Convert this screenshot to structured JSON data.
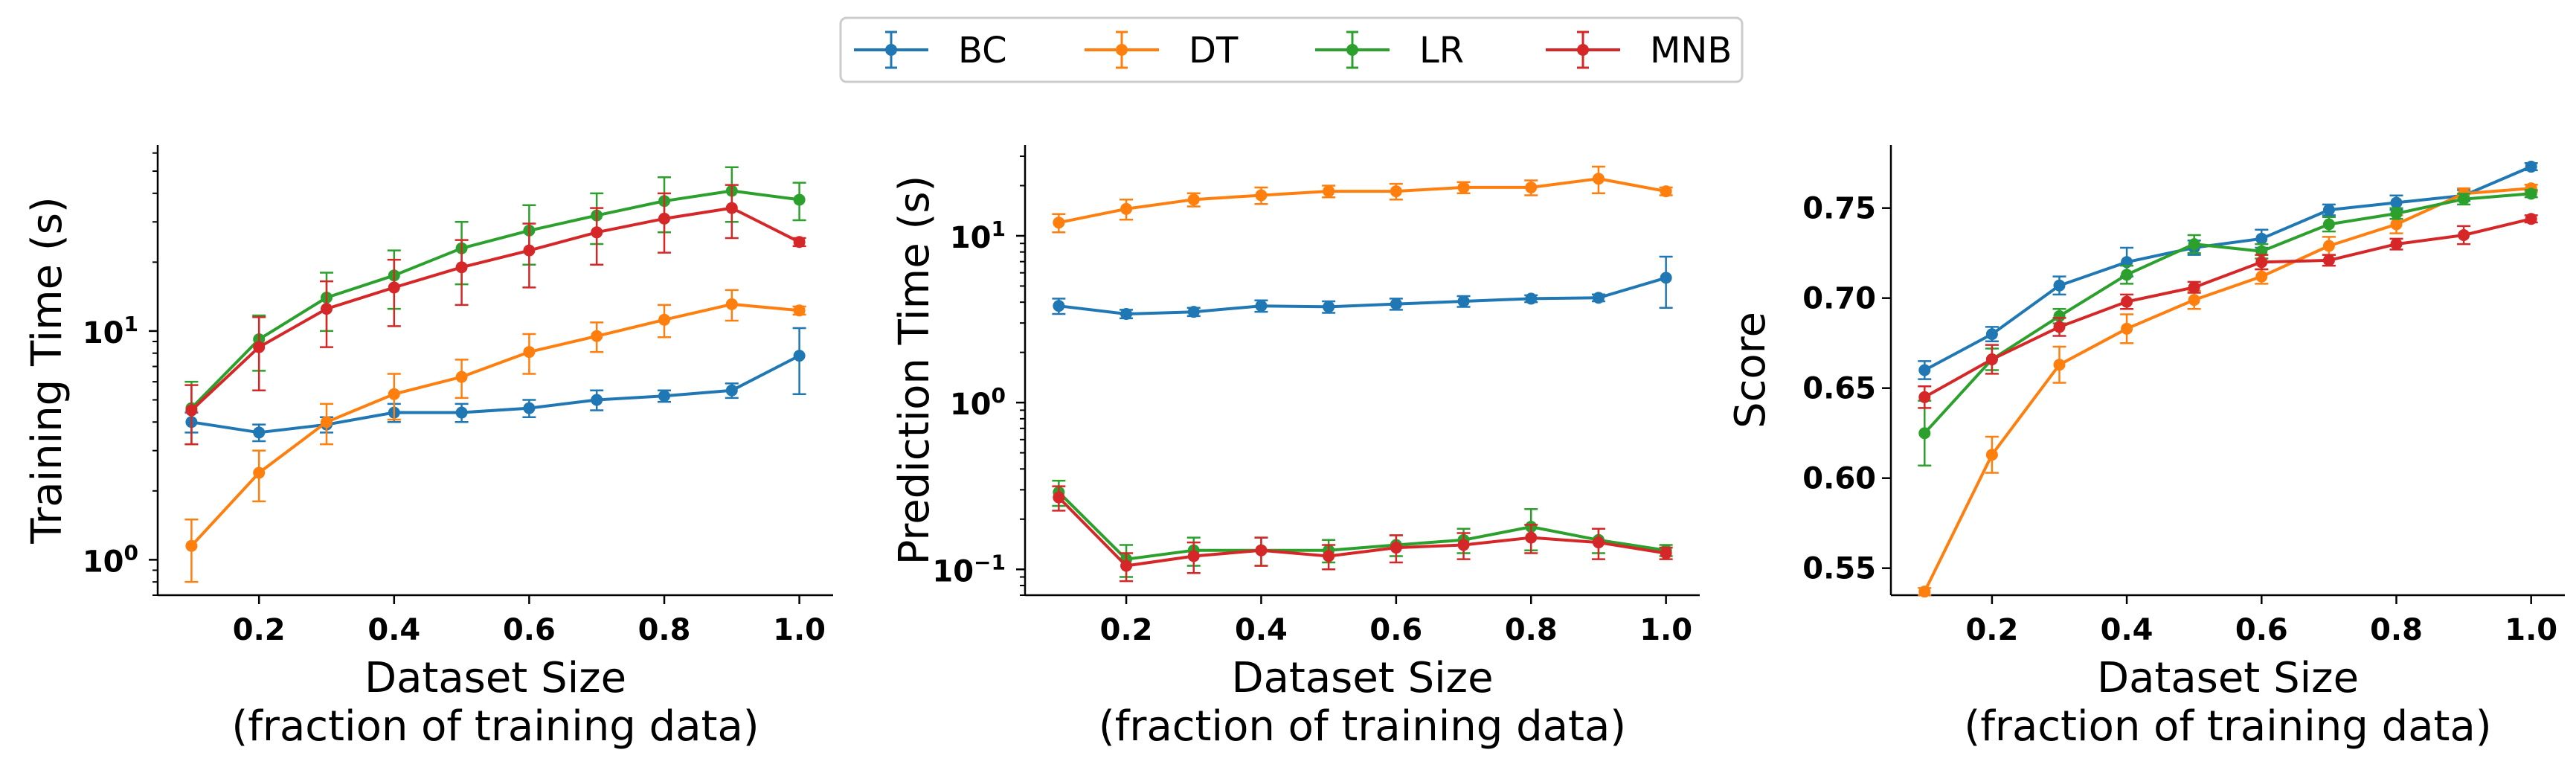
{
  "legend": {
    "items": [
      {
        "label": "BC",
        "color": "#1f77b4"
      },
      {
        "label": "DT",
        "color": "#ff7f0e"
      },
      {
        "label": "LR",
        "color": "#2ca02c"
      },
      {
        "label": "MNB",
        "color": "#d62728"
      }
    ],
    "placement": "top-center"
  },
  "chart_data": [
    {
      "type": "line",
      "ylabel": "Training Time (s)",
      "xlabel": [
        "Dataset Size",
        "(fraction of training data)"
      ],
      "yscale": "log",
      "xlim": [
        0.05,
        1.05
      ],
      "ylim": [
        0.7,
        65
      ],
      "xticks": [
        0.2,
        0.4,
        0.6,
        0.8,
        1.0
      ],
      "xtick_labels": [
        "0.2",
        "0.4",
        "0.6",
        "0.8",
        "1.0"
      ],
      "yticks": [
        1,
        10
      ],
      "ytick_labels": [
        [
          "10",
          "0"
        ],
        [
          "10",
          "1"
        ]
      ],
      "x": [
        0.1,
        0.2,
        0.3,
        0.4,
        0.5,
        0.6,
        0.7,
        0.8,
        0.9,
        1.0
      ],
      "series": [
        {
          "name": "BC",
          "color": "#1f77b4",
          "values": [
            4.0,
            3.6,
            3.9,
            4.4,
            4.4,
            4.6,
            5.0,
            5.2,
            5.5,
            7.8
          ],
          "errors": [
            0.4,
            0.3,
            0.3,
            0.4,
            0.4,
            0.4,
            0.5,
            0.3,
            0.4,
            2.5
          ]
        },
        {
          "name": "DT",
          "color": "#ff7f0e",
          "values": [
            1.15,
            2.4,
            4.0,
            5.3,
            6.3,
            8.1,
            9.5,
            11.2,
            13.1,
            12.3
          ],
          "errors": [
            0.35,
            0.6,
            0.8,
            1.2,
            1.2,
            1.6,
            1.4,
            1.8,
            2.0,
            0.5
          ]
        },
        {
          "name": "LR",
          "color": "#2ca02c",
          "values": [
            4.6,
            9.2,
            14.0,
            17.5,
            23.0,
            27.5,
            32.0,
            37.0,
            41.0,
            37.5
          ],
          "errors": [
            1.4,
            2.5,
            4.0,
            5.0,
            7.0,
            8.0,
            8.0,
            10.0,
            11.0,
            7.0
          ]
        },
        {
          "name": "MNB",
          "color": "#d62728",
          "values": [
            4.5,
            8.5,
            12.5,
            15.5,
            19.0,
            22.5,
            27.0,
            31.0,
            34.5,
            24.5
          ],
          "errors": [
            1.3,
            3.0,
            4.0,
            5.0,
            6.0,
            7.0,
            7.5,
            9.0,
            9.0,
            1.0
          ]
        }
      ]
    },
    {
      "type": "line",
      "ylabel": "Prediction Time (s)",
      "xlabel": [
        "Dataset Size",
        "(fraction of training data)"
      ],
      "yscale": "log",
      "xlim": [
        0.05,
        1.05
      ],
      "ylim": [
        0.07,
        35
      ],
      "xticks": [
        0.2,
        0.4,
        0.6,
        0.8,
        1.0
      ],
      "xtick_labels": [
        "0.2",
        "0.4",
        "0.6",
        "0.8",
        "1.0"
      ],
      "yticks": [
        0.1,
        1,
        10
      ],
      "ytick_labels": [
        [
          "10",
          "−1"
        ],
        [
          "10",
          "0"
        ],
        [
          "10",
          "1"
        ]
      ],
      "x": [
        0.1,
        0.2,
        0.3,
        0.4,
        0.5,
        0.6,
        0.7,
        0.8,
        0.9,
        1.0
      ],
      "series": [
        {
          "name": "BC",
          "color": "#1f77b4",
          "values": [
            3.8,
            3.4,
            3.5,
            3.8,
            3.75,
            3.9,
            4.05,
            4.2,
            4.25,
            5.6
          ],
          "errors": [
            0.4,
            0.2,
            0.2,
            0.3,
            0.3,
            0.3,
            0.3,
            0.2,
            0.2,
            1.9
          ]
        },
        {
          "name": "DT",
          "color": "#ff7f0e",
          "values": [
            12.0,
            14.5,
            16.5,
            17.5,
            18.5,
            18.5,
            19.5,
            19.5,
            22.0,
            18.5
          ],
          "errors": [
            1.5,
            2.0,
            1.5,
            2.0,
            1.5,
            2.0,
            1.5,
            2.0,
            4.0,
            1.0
          ]
        },
        {
          "name": "LR",
          "color": "#2ca02c",
          "values": [
            0.29,
            0.115,
            0.13,
            0.13,
            0.13,
            0.14,
            0.15,
            0.18,
            0.15,
            0.13
          ],
          "errors": [
            0.05,
            0.025,
            0.025,
            0.025,
            0.02,
            0.02,
            0.025,
            0.05,
            0.025,
            0.01
          ]
        },
        {
          "name": "MNB",
          "color": "#d62728",
          "values": [
            0.27,
            0.105,
            0.12,
            0.13,
            0.12,
            0.135,
            0.14,
            0.155,
            0.145,
            0.125
          ],
          "errors": [
            0.045,
            0.02,
            0.025,
            0.025,
            0.02,
            0.025,
            0.025,
            0.03,
            0.03,
            0.01
          ]
        }
      ]
    },
    {
      "type": "line",
      "ylabel": "Score",
      "xlabel": [
        "Dataset Size",
        "(fraction of training data)"
      ],
      "yscale": "linear",
      "xlim": [
        0.05,
        1.05
      ],
      "ylim": [
        0.535,
        0.785
      ],
      "xticks": [
        0.2,
        0.4,
        0.6,
        0.8,
        1.0
      ],
      "xtick_labels": [
        "0.2",
        "0.4",
        "0.6",
        "0.8",
        "1.0"
      ],
      "yticks": [
        0.55,
        0.6,
        0.65,
        0.7,
        0.75
      ],
      "ytick_labels": [
        "0.55",
        "0.60",
        "0.65",
        "0.70",
        "0.75"
      ],
      "x": [
        0.1,
        0.2,
        0.3,
        0.4,
        0.5,
        0.6,
        0.7,
        0.8,
        0.9,
        1.0
      ],
      "series": [
        {
          "name": "BC",
          "color": "#1f77b4",
          "values": [
            0.66,
            0.68,
            0.707,
            0.72,
            0.728,
            0.733,
            0.749,
            0.753,
            0.757,
            0.773
          ],
          "errors": [
            0.005,
            0.004,
            0.005,
            0.008,
            0.004,
            0.005,
            0.003,
            0.004,
            0.003,
            0.002
          ]
        },
        {
          "name": "DT",
          "color": "#ff7f0e",
          "values": [
            0.537,
            0.613,
            0.663,
            0.683,
            0.699,
            0.712,
            0.729,
            0.741,
            0.758,
            0.761
          ],
          "errors": [
            0.002,
            0.01,
            0.01,
            0.008,
            0.005,
            0.004,
            0.005,
            0.005,
            0.003,
            0.002
          ]
        },
        {
          "name": "LR",
          "color": "#2ca02c",
          "values": [
            0.625,
            0.666,
            0.69,
            0.713,
            0.73,
            0.726,
            0.741,
            0.747,
            0.755,
            0.758
          ],
          "errors": [
            0.018,
            0.006,
            0.004,
            0.005,
            0.005,
            0.004,
            0.004,
            0.003,
            0.003,
            0.002
          ]
        },
        {
          "name": "MNB",
          "color": "#d62728",
          "values": [
            0.645,
            0.666,
            0.684,
            0.698,
            0.706,
            0.72,
            0.721,
            0.73,
            0.735,
            0.744
          ],
          "errors": [
            0.006,
            0.008,
            0.005,
            0.004,
            0.003,
            0.004,
            0.003,
            0.003,
            0.005,
            0.002
          ]
        }
      ]
    }
  ]
}
